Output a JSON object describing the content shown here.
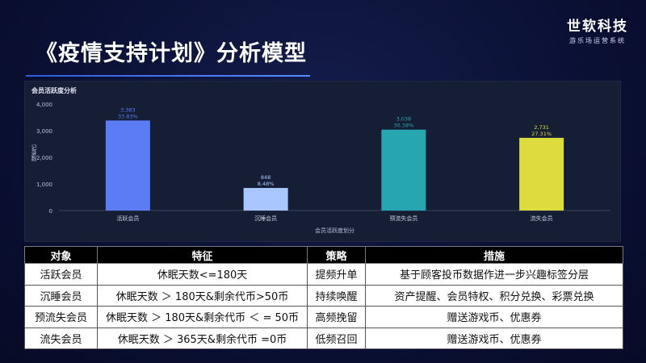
{
  "slide": {
    "title": "《疫情支持计划》分析模型",
    "brand_name": "世软科技",
    "brand_sub": "游乐场运营系统"
  },
  "chart_data": {
    "type": "bar",
    "title": "会员活跃度分析",
    "xlabel": "会员活跃度划分",
    "ylabel": "记录数",
    "ylim": [
      0,
      4000
    ],
    "yticks": [
      0,
      1000,
      2000,
      3000,
      4000
    ],
    "ytick_labels": [
      "0",
      "1,000",
      "2,000",
      "3,000",
      "4,000"
    ],
    "categories": [
      "活跃会员",
      "沉睡会员",
      "预流失会员",
      "流失会员"
    ],
    "values": [
      3383,
      848,
      3038,
      2731
    ],
    "value_labels": [
      "3,383",
      "848",
      "3,038",
      "2,731"
    ],
    "percent_labels": [
      "33.83%",
      "8.48%",
      "30.38%",
      "27.31%"
    ],
    "colors": [
      "#5b7cf5",
      "#a9c6ff",
      "#26a6b0",
      "#dcdc3e"
    ],
    "grid": false,
    "legend": "none"
  },
  "table": {
    "headers": [
      "对象",
      "特征",
      "策略",
      "措施"
    ],
    "rows": [
      [
        "活跃会员",
        "休眠天数<=180天",
        "提频升单",
        "基于顾客投币数据作进一步兴趣标签分层"
      ],
      [
        "沉睡会员",
        "休眠天数 ＞ 180天&剩余代币>50币",
        "持续唤醒",
        "资产提醒、会员特权、积分兑换、彩票兑换"
      ],
      [
        "预流失会员",
        "休眠天数 ＞ 180天&剩余代币 ＜ = 50币",
        "高频挽留",
        "赠送游戏币、优惠券"
      ],
      [
        "流失会员",
        "休眠天数 ＞ 365天&剩余代币 =0币",
        "低频召回",
        "赠送游戏币、优惠券"
      ]
    ]
  }
}
